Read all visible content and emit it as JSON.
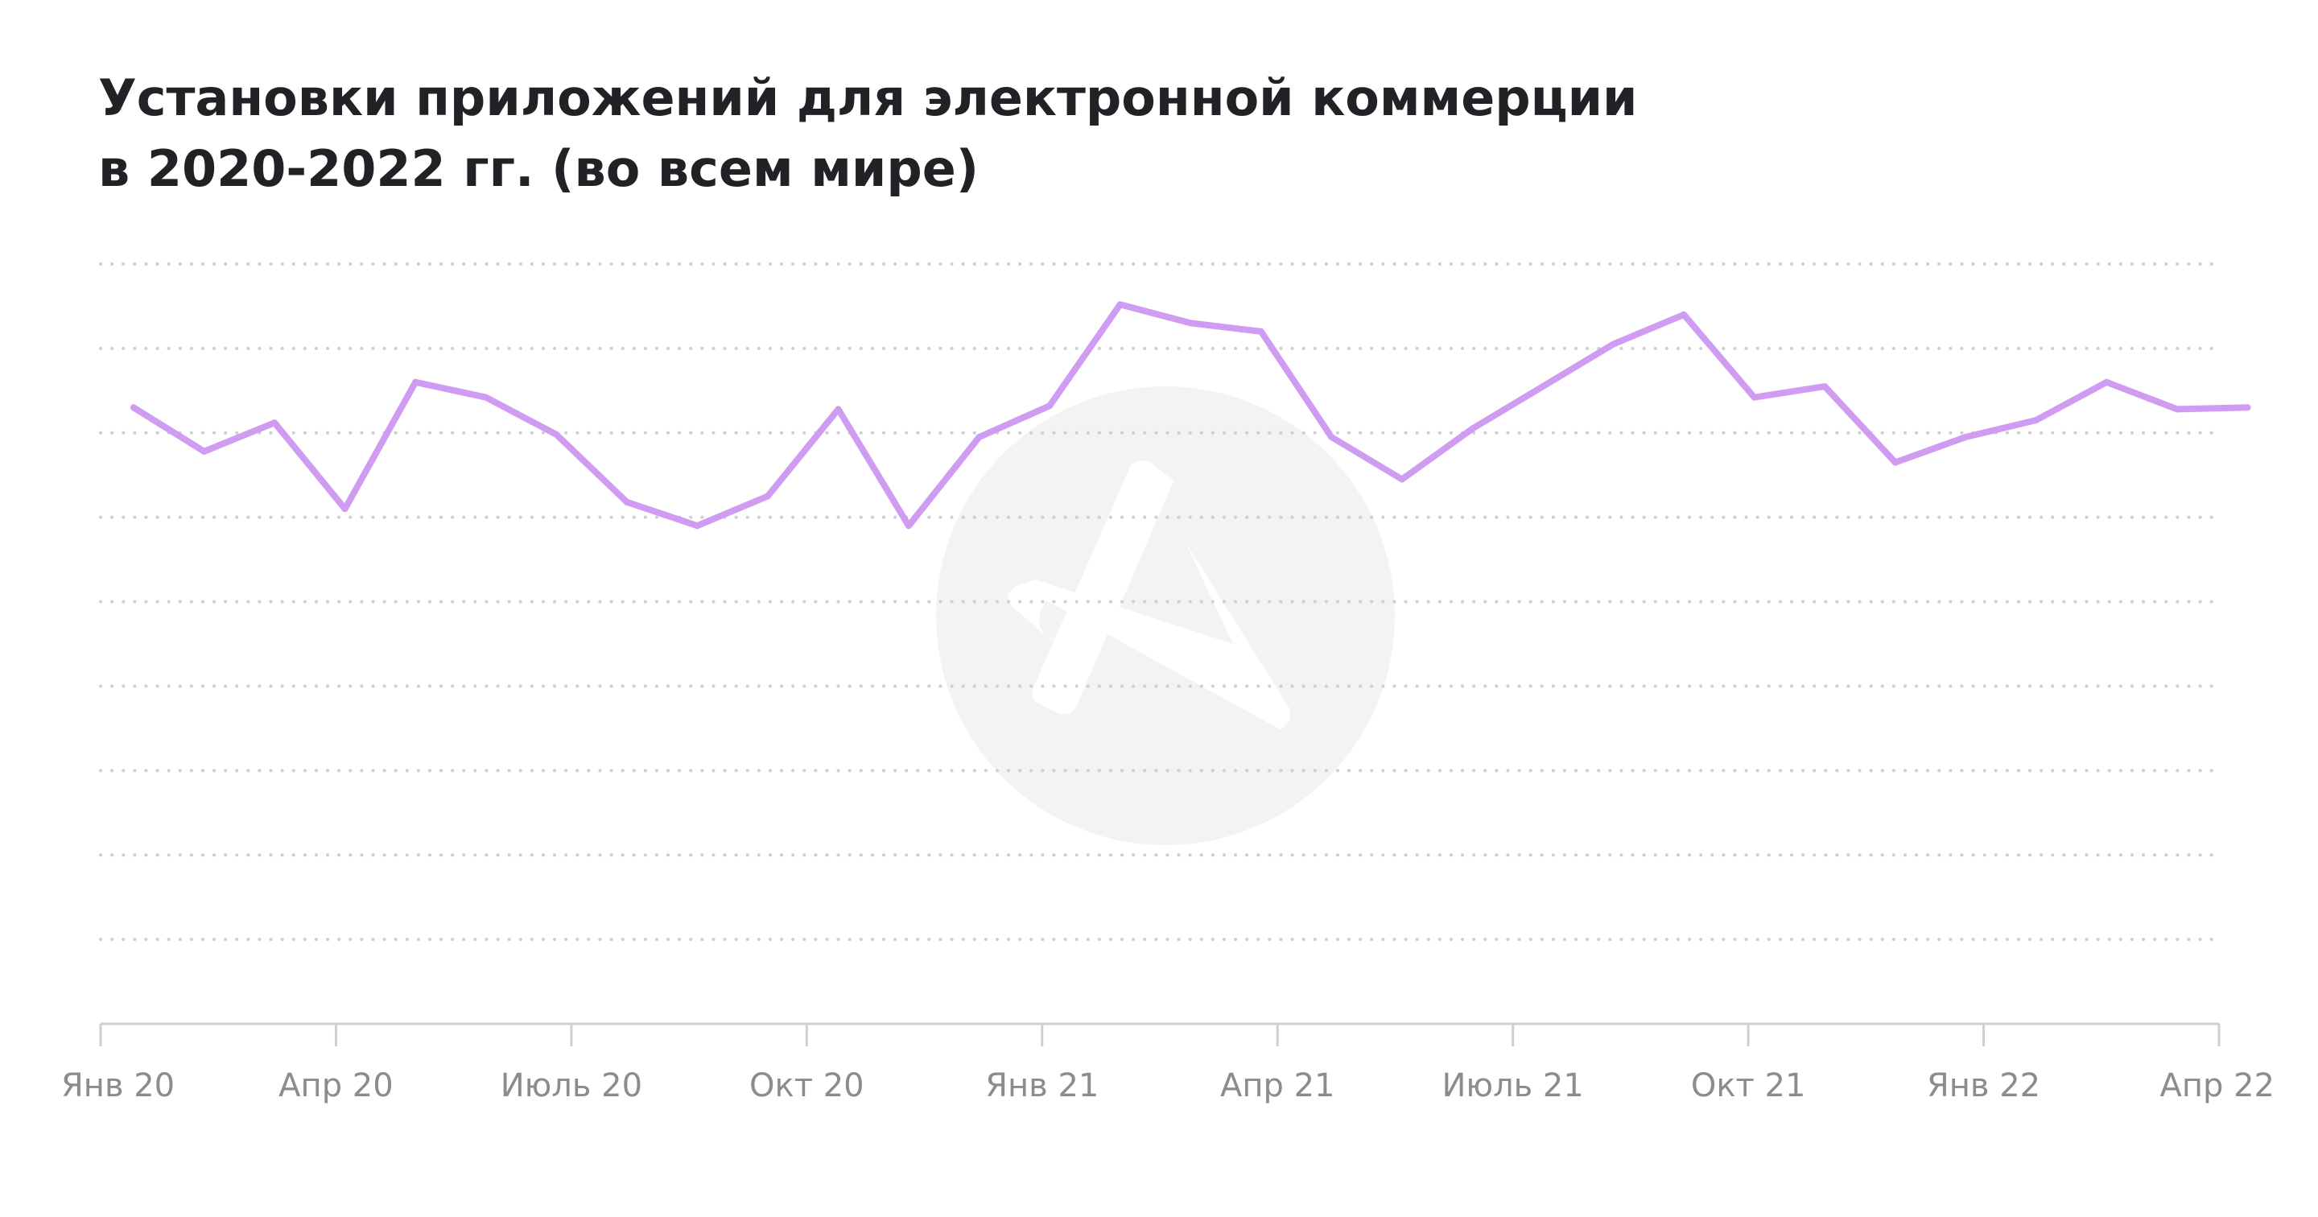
{
  "chart_data": {
    "type": "line",
    "title_lines": [
      "Установки приложений для электронной коммерции",
      "в 2020-2022 гг. (во всем мире)"
    ],
    "xlabel": "",
    "ylabel": "",
    "x_tick_labels": [
      "Янв 20",
      "Апр 20",
      "Июль 20",
      "Окт 20",
      "Янв 21",
      "Апр 21",
      "Июль 21",
      "Окт 21",
      "Янв 22",
      "Апр 22"
    ],
    "x": [
      "2020-01",
      "2020-02",
      "2020-03",
      "2020-04",
      "2020-05",
      "2020-06",
      "2020-07",
      "2020-08",
      "2020-09",
      "2020-10",
      "2020-11",
      "2020-12",
      "2021-01",
      "2021-02",
      "2021-03",
      "2021-04",
      "2021-05",
      "2021-06",
      "2021-07",
      "2021-08",
      "2021-09",
      "2021-10",
      "2021-11",
      "2021-12",
      "2022-01",
      "2022-02",
      "2022-03",
      "2022-04",
      "2022-05",
      "2022-06",
      "2022-07"
    ],
    "series": [
      {
        "values": [
          7.3,
          6.78,
          7.12,
          6.1,
          7.6,
          7.42,
          6.98,
          6.18,
          5.9,
          6.25,
          7.28,
          5.9,
          6.95,
          7.32,
          8.52,
          8.3,
          8.2,
          6.95,
          6.45,
          7.05,
          7.55,
          8.05,
          8.4,
          7.42,
          7.55,
          6.65,
          6.95,
          7.15,
          7.6,
          7.28,
          7.3
        ]
      }
    ],
    "ylim": [
      0,
      9
    ],
    "y_gridlines": [
      1,
      2,
      3,
      4,
      5,
      6,
      7,
      8,
      9
    ],
    "grid": "horizontal dotted",
    "legend": "none",
    "colors": {
      "line": "#cf9cf2",
      "grid": "#cfcfd3",
      "axis": "#cfcfd3",
      "tick_text": "#8b8b90",
      "title_text": "#222226",
      "watermark": "#f3f3f3"
    }
  }
}
